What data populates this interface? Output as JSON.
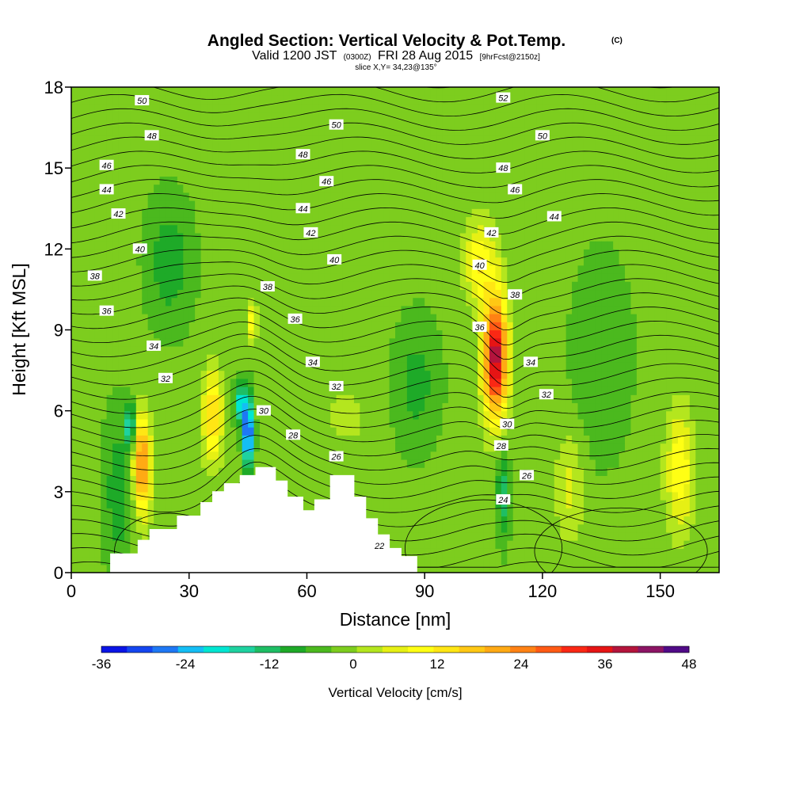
{
  "chart_data": {
    "type": "heatmap",
    "title_main": "Angled Section: Vertical Velocity & Pot.Temp.",
    "title_unit": "(C)",
    "subtitle": {
      "part1": "Valid 1200 JST",
      "part2": "(0300Z)",
      "part3": "FRI 28 Aug 2015",
      "part4": "[9hrFcst@2150z]"
    },
    "slice_text": "slice X,Y= 34,23@135°",
    "xlabel": "Distance [nm]",
    "ylabel": "Height [Kft MSL]",
    "xlim": [
      0,
      165
    ],
    "ylim": [
      0,
      18
    ],
    "xticks": [
      "0",
      "30",
      "60",
      "90",
      "120",
      "150"
    ],
    "yticks": [
      "0",
      "3",
      "6",
      "9",
      "12",
      "15",
      "18"
    ],
    "colorbar": {
      "label": "Vertical Velocity [cm/s]",
      "min": -36,
      "max": 48,
      "step": 4,
      "tick_labels": [
        "-36",
        "-24",
        "-12",
        "0",
        "12",
        "24",
        "36",
        "48"
      ],
      "colors": [
        "#0a14e6",
        "#1446f0",
        "#1e78f5",
        "#14bef5",
        "#00e6d2",
        "#1ed2a0",
        "#1ebe64",
        "#1eaa28",
        "#4bb91e",
        "#7dcd1e",
        "#b4e61e",
        "#e6f014",
        "#ffff14",
        "#ffe614",
        "#ffc814",
        "#ffaa14",
        "#ff8214",
        "#ff5a14",
        "#fa2814",
        "#e61414",
        "#b4143c",
        "#8c1464",
        "#500a87"
      ]
    },
    "terrain": [
      [
        10,
        0.7
      ],
      [
        17,
        0.7
      ],
      [
        17,
        1.2
      ],
      [
        20,
        1.2
      ],
      [
        20,
        1.6
      ],
      [
        27,
        1.6
      ],
      [
        27,
        2.1
      ],
      [
        33,
        2.1
      ],
      [
        33,
        2.6
      ],
      [
        36,
        2.6
      ],
      [
        36,
        3.0
      ],
      [
        39,
        3.0
      ],
      [
        39,
        3.3
      ],
      [
        43,
        3.3
      ],
      [
        43,
        3.6
      ],
      [
        47,
        3.6
      ],
      [
        47,
        3.9
      ],
      [
        52,
        3.9
      ],
      [
        52,
        3.4
      ],
      [
        55,
        3.4
      ],
      [
        55,
        2.8
      ],
      [
        59,
        2.8
      ],
      [
        59,
        2.3
      ],
      [
        62,
        2.3
      ],
      [
        62,
        2.7
      ],
      [
        66,
        2.7
      ],
      [
        66,
        3.6
      ],
      [
        72,
        3.6
      ],
      [
        72,
        2.8
      ],
      [
        75,
        2.8
      ],
      [
        75,
        2.0
      ],
      [
        78,
        2.0
      ],
      [
        78,
        1.4
      ],
      [
        81,
        1.4
      ],
      [
        81,
        0.9
      ],
      [
        84,
        0.9
      ],
      [
        84,
        0.6
      ],
      [
        88,
        0.6
      ],
      [
        88,
        0.3
      ]
    ],
    "velocity_cells": [
      {
        "x": 18,
        "z": 4.0,
        "sx": 2.2,
        "sz": 1.8,
        "w": 30
      },
      {
        "x": 15,
        "z": 5.5,
        "sx": 1.2,
        "sz": 0.8,
        "w": -20
      },
      {
        "x": 36,
        "z": 5.8,
        "sx": 2.4,
        "sz": 1.6,
        "w": 20
      },
      {
        "x": 45,
        "z": 5.2,
        "sx": 1.3,
        "sz": 1.3,
        "w": -36
      },
      {
        "x": 43,
        "z": 6.3,
        "sx": 1.5,
        "sz": 0.8,
        "w": -18
      },
      {
        "x": 46,
        "z": 9.2,
        "sx": 1.2,
        "sz": 0.7,
        "w": 14
      },
      {
        "x": 108,
        "z": 8.0,
        "sx": 3.0,
        "sz": 2.2,
        "w": 46
      },
      {
        "x": 104,
        "z": 11.5,
        "sx": 4.0,
        "sz": 1.5,
        "w": 14
      },
      {
        "x": 110,
        "z": 3.0,
        "sx": 1.6,
        "sz": 1.8,
        "w": -12
      },
      {
        "x": 127,
        "z": 3.2,
        "sx": 3.5,
        "sz": 2.0,
        "w": 8
      },
      {
        "x": 155,
        "z": 3.8,
        "sx": 3.5,
        "sz": 2.2,
        "w": 14
      },
      {
        "x": 70,
        "z": 5.8,
        "sx": 5.0,
        "sz": 1.0,
        "w": 5
      },
      {
        "x": 12,
        "z": 3.0,
        "sx": 4.0,
        "sz": 3.0,
        "w": -8
      },
      {
        "x": 25,
        "z": 11.5,
        "sx": 6.0,
        "sz": 2.5,
        "w": -8
      },
      {
        "x": 88,
        "z": 7.0,
        "sx": 6.0,
        "sz": 2.5,
        "w": -7
      },
      {
        "x": 135,
        "z": 8.0,
        "sx": 8.0,
        "sz": 4.0,
        "w": -5
      }
    ],
    "theta_contour_levels": [
      22,
      24,
      26,
      28,
      30,
      32,
      34,
      36,
      38,
      40,
      42,
      44,
      46,
      48,
      50,
      52
    ],
    "contour_labels": [
      {
        "text": "50",
        "x": 18,
        "z": 17.5
      },
      {
        "text": "48",
        "x": 20.5,
        "z": 16.2
      },
      {
        "text": "46",
        "x": 9,
        "z": 15.1
      },
      {
        "text": "44",
        "x": 9,
        "z": 14.2
      },
      {
        "text": "42",
        "x": 12,
        "z": 13.3
      },
      {
        "text": "40",
        "x": 17.5,
        "z": 12.0
      },
      {
        "text": "38",
        "x": 6,
        "z": 11.0
      },
      {
        "text": "36",
        "x": 9,
        "z": 9.7
      },
      {
        "text": "34",
        "x": 21,
        "z": 8.4
      },
      {
        "text": "32",
        "x": 24,
        "z": 7.2
      },
      {
        "text": "50",
        "x": 67.5,
        "z": 16.6
      },
      {
        "text": "48",
        "x": 59,
        "z": 15.5
      },
      {
        "text": "46",
        "x": 65,
        "z": 14.5
      },
      {
        "text": "44",
        "x": 59,
        "z": 13.5
      },
      {
        "text": "42",
        "x": 61,
        "z": 12.6
      },
      {
        "text": "40",
        "x": 67,
        "z": 11.6
      },
      {
        "text": "38",
        "x": 50,
        "z": 10.6
      },
      {
        "text": "36",
        "x": 57,
        "z": 9.4
      },
      {
        "text": "34",
        "x": 61.5,
        "z": 7.8
      },
      {
        "text": "32",
        "x": 67.5,
        "z": 6.9
      },
      {
        "text": "30",
        "x": 49,
        "z": 6.0
      },
      {
        "text": "28",
        "x": 56.5,
        "z": 5.1
      },
      {
        "text": "26",
        "x": 67.5,
        "z": 4.3
      },
      {
        "text": "22",
        "x": 78.5,
        "z": 1.0
      },
      {
        "text": "52",
        "x": 110,
        "z": 17.6
      },
      {
        "text": "50",
        "x": 120,
        "z": 16.2
      },
      {
        "text": "48",
        "x": 110,
        "z": 15.0
      },
      {
        "text": "46",
        "x": 113,
        "z": 14.2
      },
      {
        "text": "44",
        "x": 123,
        "z": 13.2
      },
      {
        "text": "42",
        "x": 107,
        "z": 12.6
      },
      {
        "text": "40",
        "x": 104,
        "z": 11.4
      },
      {
        "text": "38",
        "x": 113,
        "z": 10.3
      },
      {
        "text": "36",
        "x": 104,
        "z": 9.1
      },
      {
        "text": "34",
        "x": 117,
        "z": 7.8
      },
      {
        "text": "32",
        "x": 121,
        "z": 6.6
      },
      {
        "text": "30",
        "x": 111,
        "z": 5.5
      },
      {
        "text": "28",
        "x": 109.5,
        "z": 4.7
      },
      {
        "text": "26",
        "x": 116,
        "z": 3.6
      },
      {
        "text": "24",
        "x": 110,
        "z": 2.7
      }
    ]
  }
}
